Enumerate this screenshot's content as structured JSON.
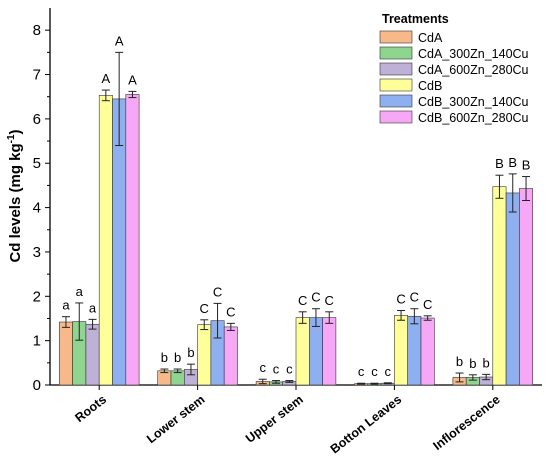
{
  "chart_data": {
    "type": "bar",
    "ylabel": "Cd levels (mg kg",
    "ylabel_sup": "-1",
    "ylabel_tail": ")",
    "ylim": [
      0,
      8.5
    ],
    "yticks": [
      0,
      1,
      2,
      3,
      4,
      5,
      6,
      7,
      8
    ],
    "categories": [
      "Roots",
      "Lower stem",
      "Upper stem",
      "Botton Leaves",
      "Inflorescence"
    ],
    "legend": {
      "title": "Treatments",
      "position": "top-right"
    },
    "series": [
      {
        "name": "CdA",
        "color": "#f7b98a",
        "values": [
          1.42,
          0.32,
          0.08,
          0.03,
          0.17
        ],
        "errors": [
          0.12,
          0.04,
          0.05,
          0.01,
          0.1
        ],
        "letters": [
          "a",
          "b",
          "c",
          "c",
          "b"
        ]
      },
      {
        "name": "CdA_300Zn_140Cu",
        "color": "#8fd48f",
        "values": [
          1.43,
          0.32,
          0.07,
          0.03,
          0.17
        ],
        "errors": [
          0.42,
          0.04,
          0.03,
          0.01,
          0.06
        ],
        "letters": [
          "a",
          "b",
          "c",
          "c",
          "b"
        ]
      },
      {
        "name": "CdA_600Zn_280Cu",
        "color": "#bfb0d8",
        "values": [
          1.37,
          0.35,
          0.08,
          0.04,
          0.18
        ],
        "errors": [
          0.11,
          0.12,
          0.02,
          0.01,
          0.06
        ],
        "letters": [
          "a",
          "b",
          "c",
          "c",
          "b"
        ]
      },
      {
        "name": "CdB",
        "color": "#ffff99",
        "values": [
          6.53,
          1.36,
          1.52,
          1.57,
          4.47
        ],
        "errors": [
          0.12,
          0.11,
          0.13,
          0.11,
          0.26
        ],
        "letters": [
          "A",
          "C",
          "C",
          "C",
          "B"
        ]
      },
      {
        "name": "CdB_300Zn_140Cu",
        "color": "#8fb0f0",
        "values": [
          6.45,
          1.45,
          1.52,
          1.55,
          4.33
        ],
        "errors": [
          1.05,
          0.39,
          0.2,
          0.17,
          0.43
        ],
        "letters": [
          "A",
          "C",
          "C",
          "C",
          "B"
        ]
      },
      {
        "name": "CdB_600Zn_280Cu",
        "color": "#f6a8f6",
        "values": [
          6.55,
          1.31,
          1.52,
          1.51,
          4.43
        ],
        "errors": [
          0.07,
          0.08,
          0.13,
          0.05,
          0.27
        ],
        "letters": [
          "A",
          "C",
          "C",
          "C",
          "B"
        ]
      }
    ]
  }
}
